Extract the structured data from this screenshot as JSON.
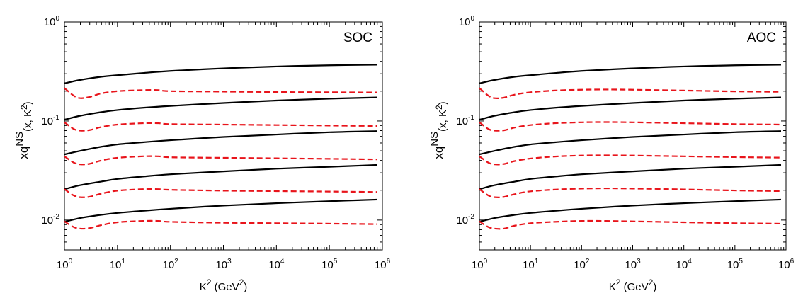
{
  "chart_data": [
    {
      "type": "line",
      "title": "",
      "label": "SOC",
      "xlabel": {
        "base": "K",
        "sup": "2",
        "unit_open": " (GeV",
        "unit_sup": "2",
        "unit_close": ")"
      },
      "ylabel": {
        "prefix": "xq",
        "sup": "NS",
        "sub": "(x, K",
        "sub_sup": "2",
        "close": ")"
      },
      "xscale": "log",
      "yscale": "log",
      "xlim": [
        1,
        1000000
      ],
      "ylim": [
        0.005,
        1
      ],
      "xticks": [
        {
          "base": "10",
          "exp": "0"
        },
        {
          "base": "10",
          "exp": "1"
        },
        {
          "base": "10",
          "exp": "2"
        },
        {
          "base": "10",
          "exp": "3"
        },
        {
          "base": "10",
          "exp": "4"
        },
        {
          "base": "10",
          "exp": "5"
        },
        {
          "base": "10",
          "exp": "6"
        }
      ],
      "yticks": [
        {
          "base": "10",
          "exp": "-2",
          "value": 0.01
        },
        {
          "base": "10",
          "exp": "-1",
          "value": 0.1
        },
        {
          "base": "10",
          "exp": "0",
          "value": 1
        }
      ],
      "grid": false,
      "series": [
        {
          "style": "solid",
          "color": "#000000",
          "x": [
            1,
            2,
            5,
            10,
            30,
            100,
            1000,
            10000,
            100000,
            800000
          ],
          "y": [
            0.24,
            0.26,
            0.28,
            0.29,
            0.305,
            0.32,
            0.34,
            0.355,
            0.365,
            0.37
          ]
        },
        {
          "style": "dashed",
          "color": "#e8141b",
          "x": [
            1,
            1.5,
            2,
            3,
            5,
            10,
            30,
            60,
            100,
            1000,
            10000,
            100000,
            800000
          ],
          "y": [
            0.215,
            0.18,
            0.17,
            0.175,
            0.19,
            0.2,
            0.205,
            0.205,
            0.2,
            0.198,
            0.196,
            0.195,
            0.194
          ]
        },
        {
          "style": "solid",
          "color": "#000000",
          "x": [
            1,
            2,
            5,
            10,
            30,
            100,
            1000,
            10000,
            100000,
            800000
          ],
          "y": [
            0.103,
            0.113,
            0.123,
            0.129,
            0.136,
            0.142,
            0.152,
            0.161,
            0.168,
            0.173
          ]
        },
        {
          "style": "dashed",
          "color": "#e8141b",
          "x": [
            1,
            1.5,
            2,
            3,
            5,
            10,
            30,
            60,
            100,
            1000,
            10000,
            100000,
            800000
          ],
          "y": [
            0.097,
            0.083,
            0.08,
            0.081,
            0.087,
            0.092,
            0.095,
            0.095,
            0.093,
            0.092,
            0.091,
            0.09,
            0.089
          ]
        },
        {
          "style": "solid",
          "color": "#000000",
          "x": [
            1,
            2,
            5,
            10,
            30,
            100,
            1000,
            10000,
            100000,
            800000
          ],
          "y": [
            0.046,
            0.05,
            0.055,
            0.058,
            0.061,
            0.064,
            0.069,
            0.073,
            0.077,
            0.079
          ]
        },
        {
          "style": "dashed",
          "color": "#e8141b",
          "x": [
            1,
            1.5,
            2,
            3,
            5,
            10,
            30,
            60,
            100,
            1000,
            10000,
            100000,
            800000
          ],
          "y": [
            0.044,
            0.038,
            0.0365,
            0.037,
            0.04,
            0.0425,
            0.044,
            0.044,
            0.043,
            0.0425,
            0.042,
            0.0415,
            0.041
          ]
        },
        {
          "style": "solid",
          "color": "#000000",
          "x": [
            1,
            2,
            5,
            10,
            30,
            100,
            1000,
            10000,
            100000,
            800000
          ],
          "y": [
            0.0205,
            0.0225,
            0.0245,
            0.026,
            0.0275,
            0.029,
            0.031,
            0.033,
            0.0345,
            0.036
          ]
        },
        {
          "style": "dashed",
          "color": "#e8141b",
          "x": [
            1,
            1.5,
            2,
            3,
            5,
            10,
            30,
            60,
            100,
            1000,
            10000,
            100000,
            800000
          ],
          "y": [
            0.0205,
            0.0177,
            0.017,
            0.0172,
            0.0185,
            0.0198,
            0.0205,
            0.0205,
            0.0202,
            0.0198,
            0.0196,
            0.0194,
            0.0192
          ]
        },
        {
          "style": "solid",
          "color": "#000000",
          "x": [
            1,
            2,
            5,
            10,
            30,
            100,
            1000,
            10000,
            100000,
            800000
          ],
          "y": [
            0.0096,
            0.0105,
            0.0113,
            0.0118,
            0.0124,
            0.013,
            0.014,
            0.0148,
            0.0155,
            0.0161
          ]
        },
        {
          "style": "dashed",
          "color": "#e8141b",
          "x": [
            1,
            1.5,
            2,
            3,
            5,
            10,
            30,
            60,
            100,
            1000,
            10000,
            100000,
            800000
          ],
          "y": [
            0.0097,
            0.0085,
            0.0082,
            0.0083,
            0.0089,
            0.0095,
            0.0098,
            0.0098,
            0.0096,
            0.0094,
            0.0093,
            0.0092,
            0.0091
          ]
        }
      ]
    },
    {
      "type": "line",
      "title": "",
      "label": "AOC",
      "xlabel": {
        "base": "K",
        "sup": "2",
        "unit_open": " (GeV",
        "unit_sup": "2",
        "unit_close": ")"
      },
      "ylabel": {
        "prefix": "xq",
        "sup": "NS",
        "sub": "(x, K",
        "sub_sup": "2",
        "close": ")"
      },
      "xscale": "log",
      "yscale": "log",
      "xlim": [
        1,
        1000000
      ],
      "ylim": [
        0.005,
        1
      ],
      "xticks": [
        {
          "base": "10",
          "exp": "0"
        },
        {
          "base": "10",
          "exp": "1"
        },
        {
          "base": "10",
          "exp": "2"
        },
        {
          "base": "10",
          "exp": "3"
        },
        {
          "base": "10",
          "exp": "4"
        },
        {
          "base": "10",
          "exp": "5"
        },
        {
          "base": "10",
          "exp": "6"
        }
      ],
      "yticks": [
        {
          "base": "10",
          "exp": "-2",
          "value": 0.01
        },
        {
          "base": "10",
          "exp": "-1",
          "value": 0.1
        },
        {
          "base": "10",
          "exp": "0",
          "value": 1
        }
      ],
      "grid": false,
      "series": [
        {
          "style": "solid",
          "color": "#000000",
          "x": [
            1,
            2,
            5,
            10,
            30,
            100,
            1000,
            10000,
            100000,
            800000
          ],
          "y": [
            0.24,
            0.26,
            0.28,
            0.29,
            0.305,
            0.32,
            0.34,
            0.355,
            0.365,
            0.37
          ]
        },
        {
          "style": "dashed",
          "color": "#e8141b",
          "x": [
            1,
            1.5,
            2,
            3,
            5,
            10,
            30,
            100,
            300,
            1000,
            10000,
            100000,
            800000
          ],
          "y": [
            0.215,
            0.18,
            0.17,
            0.172,
            0.185,
            0.195,
            0.203,
            0.207,
            0.208,
            0.207,
            0.203,
            0.199,
            0.197
          ]
        },
        {
          "style": "solid",
          "color": "#000000",
          "x": [
            1,
            2,
            5,
            10,
            30,
            100,
            1000,
            10000,
            100000,
            800000
          ],
          "y": [
            0.103,
            0.113,
            0.123,
            0.129,
            0.136,
            0.142,
            0.152,
            0.161,
            0.168,
            0.173
          ]
        },
        {
          "style": "dashed",
          "color": "#e8141b",
          "x": [
            1,
            1.5,
            2,
            3,
            5,
            10,
            30,
            100,
            300,
            1000,
            10000,
            100000,
            800000
          ],
          "y": [
            0.097,
            0.083,
            0.08,
            0.0805,
            0.086,
            0.091,
            0.095,
            0.097,
            0.0975,
            0.097,
            0.095,
            0.093,
            0.092
          ]
        },
        {
          "style": "solid",
          "color": "#000000",
          "x": [
            1,
            2,
            5,
            10,
            30,
            100,
            1000,
            10000,
            100000,
            800000
          ],
          "y": [
            0.046,
            0.05,
            0.055,
            0.058,
            0.061,
            0.064,
            0.069,
            0.073,
            0.077,
            0.079
          ]
        },
        {
          "style": "dashed",
          "color": "#e8141b",
          "x": [
            1,
            1.5,
            2,
            3,
            5,
            10,
            30,
            100,
            300,
            1000,
            10000,
            100000,
            800000
          ],
          "y": [
            0.044,
            0.038,
            0.0365,
            0.0368,
            0.0395,
            0.0418,
            0.0438,
            0.0448,
            0.045,
            0.0448,
            0.044,
            0.0432,
            0.0427
          ]
        },
        {
          "style": "solid",
          "color": "#000000",
          "x": [
            1,
            2,
            5,
            10,
            30,
            100,
            1000,
            10000,
            100000,
            800000
          ],
          "y": [
            0.0205,
            0.0225,
            0.0245,
            0.026,
            0.0275,
            0.029,
            0.031,
            0.033,
            0.0345,
            0.036
          ]
        },
        {
          "style": "dashed",
          "color": "#e8141b",
          "x": [
            1,
            1.5,
            2,
            3,
            5,
            10,
            30,
            100,
            300,
            1000,
            10000,
            100000,
            800000
          ],
          "y": [
            0.0205,
            0.0177,
            0.017,
            0.0171,
            0.0183,
            0.0195,
            0.0203,
            0.0208,
            0.0209,
            0.0208,
            0.0204,
            0.0199,
            0.0196
          ]
        },
        {
          "style": "solid",
          "color": "#000000",
          "x": [
            1,
            2,
            5,
            10,
            30,
            100,
            1000,
            10000,
            100000,
            800000
          ],
          "y": [
            0.0096,
            0.0105,
            0.0113,
            0.0118,
            0.0124,
            0.013,
            0.014,
            0.0148,
            0.0155,
            0.0161
          ]
        },
        {
          "style": "dashed",
          "color": "#e8141b",
          "x": [
            1,
            1.5,
            2,
            3,
            5,
            10,
            30,
            100,
            300,
            1000,
            10000,
            100000,
            800000
          ],
          "y": [
            0.0097,
            0.0085,
            0.0082,
            0.0082,
            0.0088,
            0.0093,
            0.0096,
            0.0098,
            0.0098,
            0.0097,
            0.0095,
            0.0093,
            0.0092
          ]
        }
      ]
    }
  ]
}
